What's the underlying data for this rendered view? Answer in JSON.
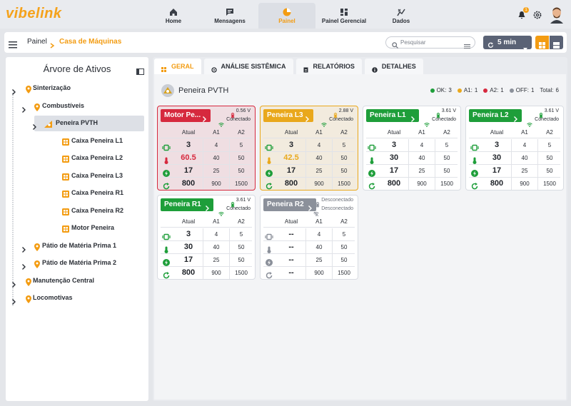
{
  "header": {
    "logo": "vibelink",
    "nav": [
      {
        "label": "Home"
      },
      {
        "label": "Mensagens"
      },
      {
        "label": "Painel",
        "active": true
      },
      {
        "label": "Painel Gerencial"
      },
      {
        "label": "Dados"
      }
    ],
    "notifications": 1
  },
  "toolbar": {
    "breadcrumb": [
      "Painel",
      "Casa de Máquinas"
    ],
    "search_placeholder": "Pesquisar",
    "interval": "5 min"
  },
  "tree": {
    "title": "Árvore de Ativos",
    "nodes": [
      {
        "label": "Sinterização",
        "expanded": true,
        "children": [
          {
            "label": "Combustíveis",
            "expanded": true,
            "children": [
              {
                "label": "Peneira PVTH",
                "expanded": true,
                "selected": true,
                "children": [
                  {
                    "label": "Caixa Peneira L1"
                  },
                  {
                    "label": "Caixa Peneira L2"
                  },
                  {
                    "label": "Caixa Peneira L3"
                  },
                  {
                    "label": "Caixa Peneira R1"
                  },
                  {
                    "label": "Caixa Peneira R2"
                  },
                  {
                    "label": "Motor Peneira"
                  }
                ]
              }
            ]
          },
          {
            "label": "Pátio de Matéria Prima 1",
            "expanded": false
          },
          {
            "label": "Pátio de Matéria Prima 2",
            "expanded": false
          }
        ]
      },
      {
        "label": "Manutenção Central",
        "expanded": false
      },
      {
        "label": "Locomotivas",
        "expanded": false
      }
    ]
  },
  "content": {
    "tabs": [
      {
        "label": "GERAL",
        "active": true
      },
      {
        "label": "ANÁLISE SISTÊMICA"
      },
      {
        "label": "RELATÓRIOS"
      },
      {
        "label": "DETALHES"
      }
    ],
    "title": "Peneira PVTH",
    "status": [
      {
        "label": "OK:",
        "value": 3,
        "color": "#1e9e3a"
      },
      {
        "label": "A1:",
        "value": 1,
        "color": "#e9a81c"
      },
      {
        "label": "A2:",
        "value": 1,
        "color": "#d6293e"
      },
      {
        "label": "OFF:",
        "value": 1,
        "color": "#8b909a"
      }
    ],
    "total": {
      "label": "Total:",
      "value": 6
    },
    "columns": [
      "Atual",
      "A1",
      "A2"
    ],
    "cards": [
      {
        "name": "Motor Pe...",
        "color": "#d6293e",
        "voltage": "0.56 V",
        "connection": "Conectado",
        "rows": [
          [
            3,
            4,
            5
          ],
          [
            60.5,
            40,
            50
          ],
          [
            17,
            25,
            50
          ],
          [
            800,
            900,
            1500
          ]
        ]
      },
      {
        "name": "Peneira L3",
        "color": "#e9a81c",
        "voltage": "2.88 V",
        "connection": "Conectado",
        "rows": [
          [
            3,
            4,
            5
          ],
          [
            42.5,
            40,
            50
          ],
          [
            17,
            25,
            50
          ],
          [
            800,
            900,
            1500
          ]
        ]
      },
      {
        "name": "Peneira L1",
        "color": "#1e9e3a",
        "voltage": "3.61 V",
        "connection": "Conectado",
        "rows": [
          [
            3,
            4,
            5
          ],
          [
            30,
            40,
            50
          ],
          [
            17,
            25,
            50
          ],
          [
            800,
            900,
            1500
          ]
        ]
      },
      {
        "name": "Peneira L2",
        "color": "#1e9e3a",
        "voltage": "3.61 V",
        "connection": "Conectado",
        "rows": [
          [
            3,
            4,
            5
          ],
          [
            30,
            40,
            50
          ],
          [
            17,
            25,
            50
          ],
          [
            800,
            900,
            1500
          ]
        ]
      },
      {
        "name": "Peneira R1",
        "color": "#1e9e3a",
        "voltage": "3.61 V",
        "connection": "Conectado",
        "rows": [
          [
            3,
            4,
            5
          ],
          [
            30,
            40,
            50
          ],
          [
            17,
            25,
            50
          ],
          [
            800,
            900,
            1500
          ]
        ]
      },
      {
        "name": "Peneira R2",
        "color": "#8b909a",
        "voltage": "Desconectado",
        "connection": "Desconectado",
        "rows": [
          [
            "--",
            4,
            5
          ],
          [
            "--",
            40,
            50
          ],
          [
            "--",
            25,
            50
          ],
          [
            "--",
            900,
            1500
          ]
        ]
      }
    ]
  }
}
